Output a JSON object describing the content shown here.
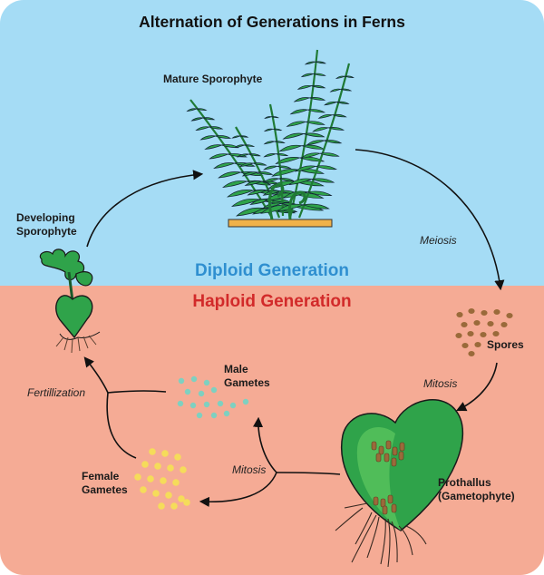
{
  "title": "Alternation of Generations in Ferns",
  "regions": {
    "diploid": "Diploid Generation",
    "haploid": "Haploid Generation"
  },
  "stages": {
    "mature_sporophyte": "Mature Sporophyte",
    "developing_sporophyte_line1": "Developing",
    "developing_sporophyte_line2": "Sporophyte",
    "spores": "Spores",
    "prothallus_line1": "Prothallus",
    "prothallus_line2": "(Gametophyte)",
    "male_gametes_line1": "Male",
    "male_gametes_line2": "Gametes",
    "female_gametes_line1": "Female",
    "female_gametes_line2": "Gametes"
  },
  "processes": {
    "meiosis": "Meiosis",
    "mitosis_spores": "Mitosis",
    "mitosis_gametes": "Mitosis",
    "fertilization": "Fertillization"
  },
  "colors": {
    "diploid_bg": "#a5dcf5",
    "haploid_bg": "#f5ab95",
    "diploid_text": "#2f8fd0",
    "haploid_text": "#d22a2a",
    "frond_green": "#2fa34a",
    "light_green": "#56c25c",
    "spore_brown": "#9a6a3a",
    "male_gamete": "#7fd0c0",
    "female_gamete": "#f5dc5a"
  }
}
